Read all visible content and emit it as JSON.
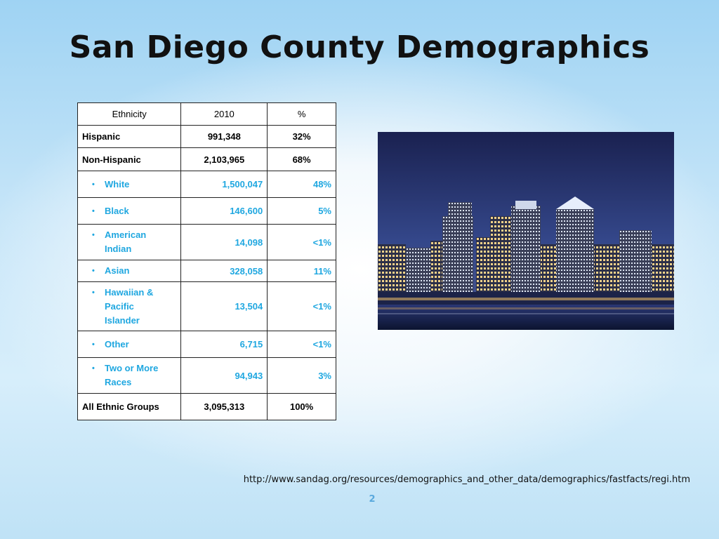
{
  "slide": {
    "title": "San Diego County Demographics",
    "source_url": "http://www.sandag.org/resources/demographics_and_other_data/demographics/fastfacts/regi.htm",
    "page_number": "2"
  },
  "table": {
    "headers": [
      "Ethnicity",
      "2010",
      "%"
    ],
    "rows": [
      {
        "label": "Hispanic",
        "value": "991,348",
        "pct": "32%"
      },
      {
        "label": "Non-Hispanic",
        "value": "2,103,965",
        "pct": "68%"
      }
    ],
    "sub_rows": [
      {
        "lines": [
          "White"
        ],
        "value": "1,500,047",
        "pct": "48%"
      },
      {
        "lines": [
          "Black"
        ],
        "value": "146,600",
        "pct": "5%"
      },
      {
        "lines": [
          "American",
          "Indian"
        ],
        "value": "14,098",
        "pct": "<1%"
      },
      {
        "lines": [
          "Asian"
        ],
        "value": "328,058",
        "pct": "11%"
      },
      {
        "lines": [
          "Hawaiian &",
          "Pacific",
          "Islander"
        ],
        "value": "13,504",
        "pct": "<1%"
      },
      {
        "lines": [
          "Other"
        ],
        "value": "6,715",
        "pct": "<1%"
      },
      {
        "lines": [
          "Two or More",
          "Races"
        ],
        "value": "94,943",
        "pct": "3%"
      }
    ],
    "total": {
      "label": "All Ethnic Groups",
      "value": "3,095,313",
      "pct": "100%"
    },
    "bullet_char": "•",
    "sub_color": "#1fa7e0"
  },
  "image": {
    "icon": "city-skyline-night-photo"
  }
}
